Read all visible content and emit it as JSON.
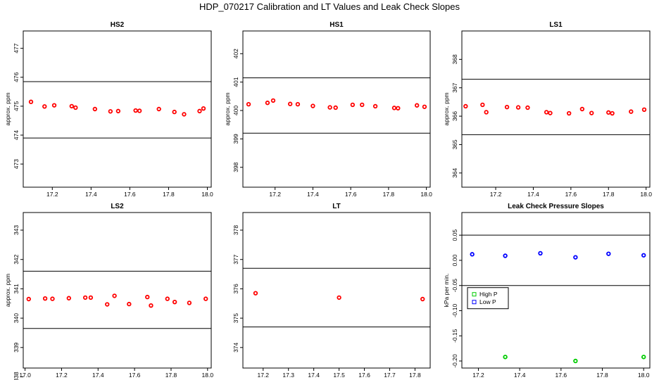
{
  "title": "HDP_070217  Calibration and LT Values and Leak Check Slopes",
  "chart_data": [
    {
      "type": "scatter",
      "title": "HS2",
      "ylabel": "approx. ppm",
      "xlim": [
        17.05,
        18.02
      ],
      "ylim": [
        472.2,
        477.6
      ],
      "xticks": [
        "17.2",
        "17.4",
        "17.6",
        "17.8",
        "18.0"
      ],
      "xtick_values": [
        17.2,
        17.4,
        17.6,
        17.8,
        18.0
      ],
      "yticks": [
        "473",
        "474",
        "475",
        "476",
        "477"
      ],
      "ytick_values": [
        473,
        474,
        475,
        476,
        477
      ],
      "hlines": [
        475.85,
        473.9
      ],
      "series": [
        {
          "color": "#ff0000",
          "marker": "circle",
          "x": [
            17.09,
            17.16,
            17.21,
            17.3,
            17.32,
            17.42,
            17.5,
            17.54,
            17.63,
            17.65,
            17.75,
            17.83,
            17.88,
            17.96,
            17.98
          ],
          "y": [
            475.15,
            474.99,
            475.03,
            475.0,
            474.95,
            474.9,
            474.82,
            474.83,
            474.85,
            474.84,
            474.9,
            474.8,
            474.72,
            474.83,
            474.92
          ]
        }
      ]
    },
    {
      "type": "scatter",
      "title": "HS1",
      "ylabel": "approx. ppm",
      "xlim": [
        17.03,
        18.02
      ],
      "ylim": [
        397.3,
        402.8
      ],
      "xticks": [
        "17.2",
        "17.4",
        "17.6",
        "17.8",
        "18.0"
      ],
      "xtick_values": [
        17.2,
        17.4,
        17.6,
        17.8,
        18.0
      ],
      "yticks": [
        "398",
        "399",
        "400",
        "401",
        "402"
      ],
      "ytick_values": [
        398,
        399,
        400,
        401,
        402
      ],
      "hlines": [
        401.15,
        399.2
      ],
      "series": [
        {
          "color": "#ff0000",
          "marker": "circle",
          "x": [
            17.06,
            17.16,
            17.19,
            17.28,
            17.32,
            17.4,
            17.49,
            17.52,
            17.61,
            17.66,
            17.73,
            17.83,
            17.85,
            17.95,
            17.99
          ],
          "y": [
            400.22,
            400.27,
            400.35,
            400.23,
            400.22,
            400.16,
            400.11,
            400.1,
            400.2,
            400.2,
            400.15,
            400.09,
            400.08,
            400.18,
            400.13
          ]
        }
      ]
    },
    {
      "type": "scatter",
      "title": "LS1",
      "ylabel": "approx. ppm",
      "xlim": [
        17.02,
        18.02
      ],
      "ylim": [
        363.5,
        369.0
      ],
      "xticks": [
        "17.2",
        "17.4",
        "17.6",
        "17.8",
        "18.0"
      ],
      "xtick_values": [
        17.2,
        17.4,
        17.6,
        17.8,
        18.0
      ],
      "yticks": [
        "364",
        "365",
        "366",
        "367",
        "368"
      ],
      "ytick_values": [
        364,
        365,
        366,
        367,
        368
      ],
      "hlines": [
        367.3,
        365.35
      ],
      "series": [
        {
          "color": "#ff0000",
          "marker": "circle",
          "x": [
            17.04,
            17.13,
            17.15,
            17.26,
            17.32,
            17.37,
            17.47,
            17.49,
            17.59,
            17.66,
            17.71,
            17.8,
            17.82,
            17.92,
            17.99
          ],
          "y": [
            366.35,
            366.4,
            366.14,
            366.32,
            366.31,
            366.3,
            366.14,
            366.11,
            366.1,
            366.25,
            366.11,
            366.13,
            366.1,
            366.16,
            366.23
          ]
        }
      ]
    },
    {
      "type": "scatter",
      "title": "LS2",
      "ylabel": "approx. ppm",
      "xlim": [
        16.99,
        18.02
      ],
      "ylim": [
        338.3,
        343.6
      ],
      "xticks": [
        "17.0",
        "17.2",
        "17.4",
        "17.6",
        "17.8",
        "18.0"
      ],
      "xtick_values": [
        17.0,
        17.2,
        17.4,
        17.6,
        17.8,
        18.0
      ],
      "yticks": [
        "338",
        "339",
        "340",
        "341",
        "342",
        "343"
      ],
      "ytick_values": [
        338,
        339,
        340,
        341,
        342,
        343
      ],
      "hlines": [
        341.6,
        339.65
      ],
      "series": [
        {
          "color": "#ff0000",
          "marker": "circle",
          "x": [
            17.02,
            17.11,
            17.15,
            17.24,
            17.33,
            17.36,
            17.45,
            17.49,
            17.57,
            17.67,
            17.69,
            17.78,
            17.82,
            17.9,
            17.99
          ],
          "y": [
            340.65,
            340.67,
            340.66,
            340.68,
            340.7,
            340.7,
            340.47,
            340.76,
            340.48,
            340.72,
            340.43,
            340.66,
            340.55,
            340.52,
            340.66
          ]
        }
      ]
    },
    {
      "type": "scatter",
      "title": "LT",
      "ylabel": "",
      "xlim": [
        17.12,
        17.86
      ],
      "ylim": [
        373.3,
        378.6
      ],
      "xticks": [
        "17.2",
        "17.3",
        "17.4",
        "17.5",
        "17.6",
        "17.7",
        "17.8"
      ],
      "xtick_values": [
        17.2,
        17.3,
        17.4,
        17.5,
        17.6,
        17.7,
        17.8
      ],
      "yticks": [
        "374",
        "375",
        "376",
        "377",
        "378"
      ],
      "ytick_values": [
        374,
        375,
        376,
        377,
        378
      ],
      "hlines": [
        376.7,
        374.7
      ],
      "series": [
        {
          "color": "#ff0000",
          "marker": "circle",
          "x": [
            17.17,
            17.5,
            17.83
          ],
          "y": [
            375.85,
            375.7,
            375.65
          ]
        }
      ]
    },
    {
      "type": "scatter",
      "title": "Leak Check Pressure Slopes",
      "ylabel": "kPa per min.",
      "xlim": [
        17.12,
        18.03
      ],
      "ylim": [
        -0.214,
        0.095
      ],
      "xticks": [
        "17.2",
        "17.4",
        "17.6",
        "17.8",
        "18.0"
      ],
      "xtick_values": [
        17.2,
        17.4,
        17.6,
        17.8,
        18.0
      ],
      "yticks": [
        "-0.20",
        "-0.15",
        "-0.10",
        "-0.05",
        "0.00",
        "0.05"
      ],
      "ytick_values": [
        -0.2,
        -0.15,
        -0.1,
        -0.05,
        0.0,
        0.05
      ],
      "hlines": [
        0.05,
        -0.05
      ],
      "legend": {
        "position": "left-middle",
        "entries": [
          {
            "label": "High P",
            "color": "#00cc00"
          },
          {
            "label": "Low P",
            "color": "#0000ff"
          }
        ]
      },
      "series": [
        {
          "name": "High P",
          "color": "#00cc00",
          "marker": "circle",
          "x": [
            17.33,
            17.67,
            18.0
          ],
          "y": [
            -0.192,
            -0.2,
            -0.192
          ]
        },
        {
          "name": "Low P",
          "color": "#0000ff",
          "marker": "circle",
          "x": [
            17.17,
            17.33,
            17.5,
            17.67,
            17.83,
            18.0
          ],
          "y": [
            0.012,
            0.009,
            0.014,
            0.006,
            0.013,
            0.01
          ]
        }
      ]
    }
  ]
}
